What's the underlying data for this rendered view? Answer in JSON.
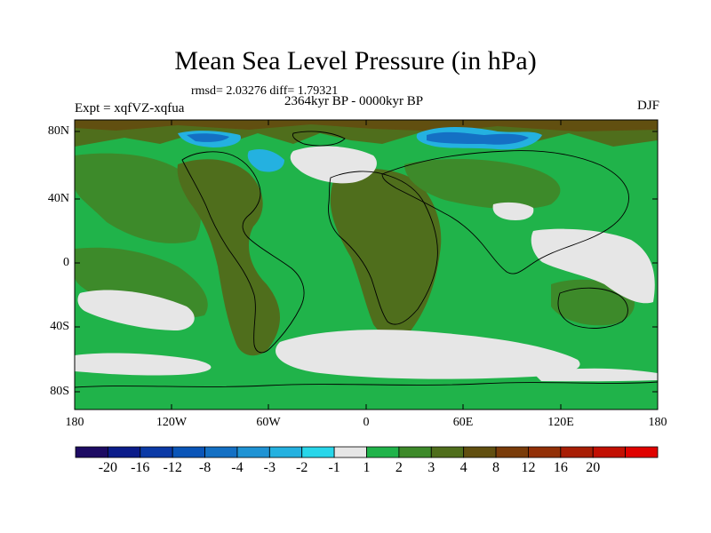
{
  "title": "Mean Sea Level Pressure (in hPa)",
  "stats": "rmsd= 2.03276 diff= 1.79321",
  "period": "2364kyr BP - 0000kyr BP",
  "experiment": "Expt = xqfVZ-xqfua",
  "season": "DJF",
  "y_axis": {
    "ticks": [
      "80N",
      "40N",
      "0",
      "40S",
      "80S"
    ]
  },
  "x_axis": {
    "ticks": [
      "180",
      "120W",
      "60W",
      "0",
      "60E",
      "120E",
      "180"
    ]
  },
  "colorbar": {
    "colors": [
      "#1d0b63",
      "#0b1c8a",
      "#0b3aa6",
      "#0a55b8",
      "#1470c4",
      "#1f93d4",
      "#24b1e0",
      "#28d6ea",
      "#e6e6e6",
      "#20b34a",
      "#3d8a2a",
      "#4f6e1c",
      "#614f10",
      "#7a3c0a",
      "#923007",
      "#a81e05",
      "#c21003",
      "#e00200"
    ],
    "labels": [
      "-20",
      "-16",
      "-12",
      "-8",
      "-4",
      "-3",
      "-2",
      "-1",
      "1",
      "2",
      "3",
      "4",
      "8",
      "12",
      "16",
      "20"
    ]
  }
}
